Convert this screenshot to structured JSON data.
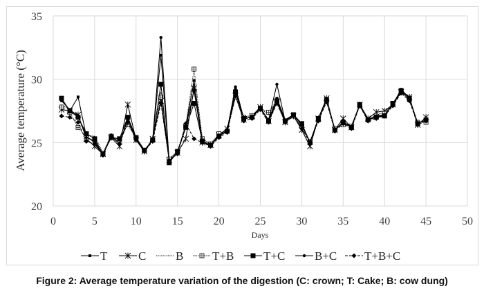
{
  "caption": "Figure 2: Average temperature variation of the digestion (C: crown; T: Cake; B: cow dung)",
  "chart_data": {
    "type": "line",
    "title": "",
    "xlabel": "Days",
    "ylabel": "Average temperature (°C)",
    "xlim": [
      0,
      50
    ],
    "ylim": [
      20,
      35
    ],
    "xticks": [
      0,
      5,
      10,
      15,
      20,
      25,
      30,
      35,
      40,
      45,
      50
    ],
    "yticks": [
      20,
      25,
      30,
      35
    ],
    "grid": true,
    "legend_position": "bottom",
    "x": [
      1,
      2,
      3,
      4,
      5,
      6,
      7,
      8,
      9,
      10,
      11,
      12,
      13,
      14,
      15,
      16,
      17,
      18,
      19,
      20,
      21,
      22,
      23,
      24,
      25,
      26,
      27,
      28,
      29,
      30,
      31,
      32,
      33,
      34,
      35,
      36,
      37,
      38,
      39,
      40,
      41,
      42,
      43,
      44,
      45
    ],
    "series": [
      {
        "name": "T",
        "marker": "small-square",
        "dash": "solid",
        "values": [
          28.4,
          27.5,
          28.6,
          25.5,
          25.0,
          24.0,
          25.5,
          24.9,
          26.8,
          25.3,
          24.3,
          25.2,
          31.9,
          23.5,
          24.2,
          26.2,
          29.1,
          25.1,
          24.8,
          25.5,
          26.0,
          29.2,
          26.9,
          27.0,
          27.7,
          26.8,
          28.5,
          26.8,
          27.2,
          26.5,
          25.0,
          26.9,
          28.4,
          26.0,
          26.6,
          26.3,
          28.0,
          26.8,
          27.1,
          27.2,
          28.0,
          29.2,
          28.5,
          26.5,
          26.8
        ]
      },
      {
        "name": "C",
        "marker": "asterisk",
        "dash": "solid",
        "values": [
          27.6,
          27.5,
          27.2,
          25.3,
          24.7,
          24.1,
          25.4,
          24.7,
          28.0,
          25.2,
          24.3,
          25.3,
          28.3,
          23.6,
          24.2,
          25.3,
          29.3,
          25.0,
          24.8,
          25.6,
          26.1,
          28.7,
          26.8,
          27.1,
          27.8,
          26.7,
          28.2,
          26.6,
          27.1,
          26.0,
          24.7,
          26.9,
          28.5,
          26.0,
          26.9,
          26.2,
          28.0,
          26.9,
          27.4,
          27.5,
          28.0,
          29.0,
          28.6,
          26.4,
          27.0
        ]
      },
      {
        "name": "B",
        "marker": "none",
        "dash": "dotted",
        "values": [
          28.0,
          27.6,
          27.0,
          25.6,
          25.5,
          24.2,
          25.6,
          25.1,
          26.6,
          25.4,
          24.4,
          25.2,
          29.0,
          23.7,
          24.3,
          26.4,
          29.7,
          25.2,
          24.9,
          25.6,
          25.9,
          28.8,
          27.0,
          27.2,
          27.7,
          27.2,
          28.3,
          26.7,
          27.2,
          26.2,
          25.1,
          26.8,
          28.3,
          26.1,
          26.5,
          26.3,
          27.9,
          26.8,
          27.2,
          27.4,
          28.0,
          29.0,
          28.4,
          26.5,
          26.8
        ]
      },
      {
        "name": "T+B",
        "marker": "square-open",
        "dash": "dotted",
        "values": [
          27.8,
          27.4,
          26.2,
          25.4,
          25.2,
          24.1,
          25.5,
          25.2,
          26.4,
          25.4,
          24.4,
          25.2,
          28.6,
          23.7,
          24.3,
          26.3,
          30.8,
          25.3,
          24.9,
          25.7,
          25.9,
          28.6,
          27.0,
          27.1,
          27.7,
          27.4,
          28.3,
          26.7,
          27.1,
          26.3,
          25.1,
          26.8,
          28.2,
          26.1,
          26.4,
          26.3,
          27.9,
          26.8,
          27.0,
          27.3,
          28.0,
          29.0,
          28.4,
          26.6,
          26.6
        ]
      },
      {
        "name": "T+C",
        "marker": "large-square",
        "dash": "solid",
        "values": [
          28.5,
          27.5,
          27.0,
          25.7,
          25.3,
          24.1,
          25.4,
          25.3,
          27.0,
          25.4,
          24.4,
          25.2,
          29.6,
          23.4,
          24.3,
          26.2,
          28.1,
          25.1,
          24.8,
          25.5,
          25.9,
          29.0,
          26.9,
          27.0,
          27.7,
          26.7,
          28.3,
          26.7,
          27.2,
          26.5,
          25.0,
          26.9,
          28.4,
          26.0,
          26.6,
          26.2,
          28.0,
          26.8,
          27.0,
          27.1,
          28.1,
          29.1,
          28.5,
          26.5,
          26.8
        ]
      },
      {
        "name": "B+C",
        "marker": "small-dot",
        "dash": "solid",
        "values": [
          28.3,
          27.6,
          27.1,
          25.4,
          25.1,
          24.0,
          25.6,
          24.9,
          26.9,
          25.3,
          24.3,
          25.2,
          33.3,
          23.5,
          24.2,
          26.3,
          29.9,
          25.1,
          24.8,
          25.5,
          26.0,
          29.4,
          26.9,
          27.0,
          27.7,
          26.8,
          29.6,
          26.7,
          27.2,
          26.4,
          25.0,
          26.9,
          28.4,
          26.0,
          26.6,
          26.2,
          28.0,
          26.8,
          27.0,
          27.2,
          28.0,
          29.2,
          28.5,
          26.5,
          26.8
        ]
      },
      {
        "name": "T+B+C",
        "marker": "diamond",
        "dash": "dashed",
        "values": [
          27.1,
          27.0,
          26.6,
          25.1,
          24.9,
          24.0,
          25.5,
          24.9,
          26.6,
          25.2,
          24.3,
          25.1,
          28.1,
          23.6,
          24.1,
          26.5,
          25.3,
          25.0,
          24.7,
          25.4,
          25.8,
          28.7,
          26.7,
          26.9,
          27.6,
          26.6,
          28.1,
          26.6,
          27.1,
          26.1,
          25.0,
          26.7,
          28.2,
          25.9,
          26.5,
          26.1,
          27.9,
          26.7,
          26.9,
          27.1,
          27.9,
          28.9,
          28.3,
          26.4,
          26.7
        ]
      }
    ]
  }
}
